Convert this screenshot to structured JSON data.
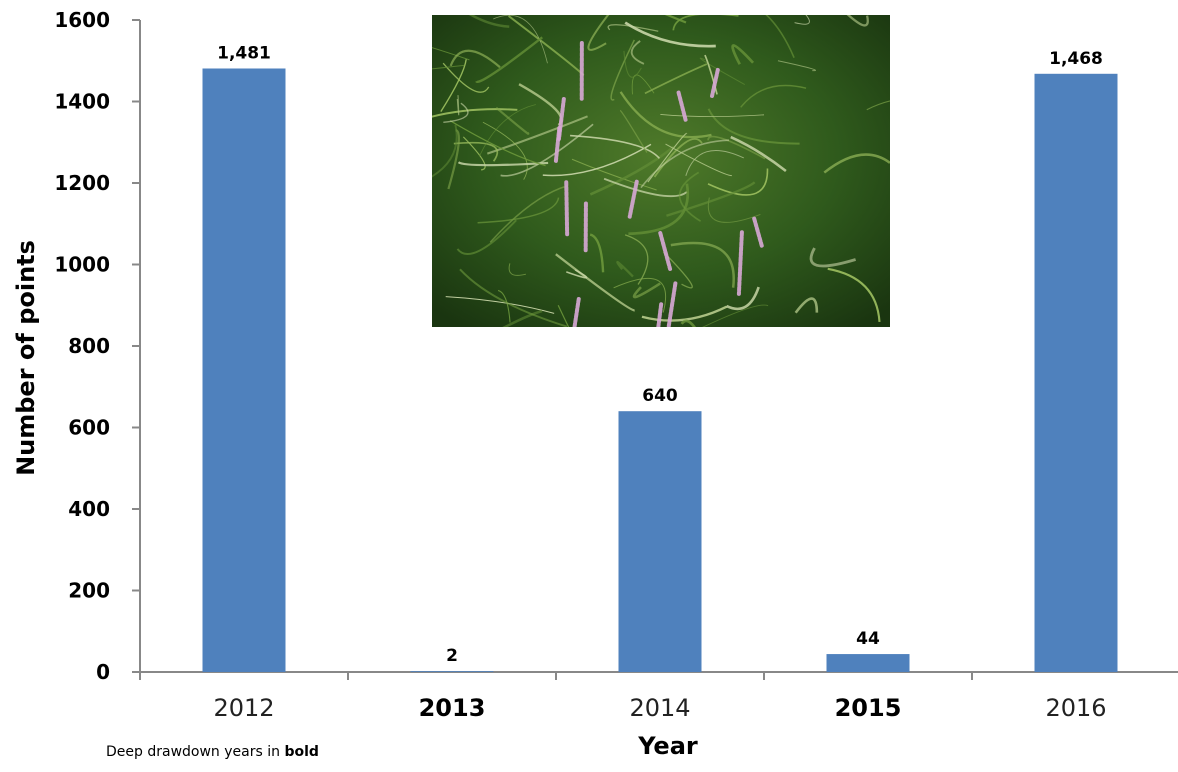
{
  "chart_data": {
    "type": "bar",
    "categories": [
      "2012",
      "2013",
      "2014",
      "2015",
      "2016"
    ],
    "bold_categories": [
      "2013",
      "2015"
    ],
    "values": [
      1481,
      2,
      640,
      44,
      1468
    ],
    "data_labels": [
      "1,481",
      "2",
      "640",
      "44",
      "1,468"
    ],
    "xlabel": "Year",
    "ylabel": "Number of  points",
    "ylim": [
      0,
      1600
    ],
    "yticks": [
      0,
      200,
      400,
      600,
      800,
      1000,
      1200,
      1400,
      1600
    ],
    "grid": false,
    "legend": "none",
    "bar_color": "#4f81bd"
  },
  "footnote": {
    "prefix": "Deep drawdown years in ",
    "bold": "bold"
  },
  "inset_photo": {
    "subject": "aquatic-plants-photo"
  }
}
